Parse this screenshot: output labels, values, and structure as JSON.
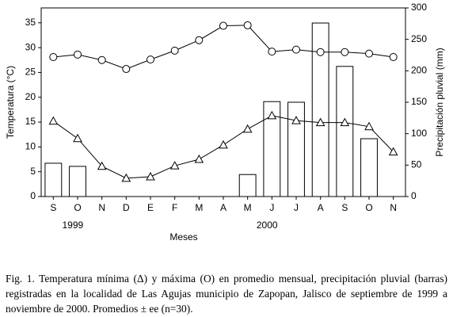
{
  "chart_data": {
    "type": "combo",
    "y_label": "Temperatura (°C)",
    "y2_label": "Precipitación pluvial (mm)",
    "x_label": "Meses",
    "categories": [
      "S",
      "O",
      "N",
      "D",
      "E",
      "F",
      "M",
      "A",
      "M",
      "J",
      "J",
      "A",
      "S",
      "O",
      "N"
    ],
    "years": [
      "1999",
      "2000"
    ],
    "series": [
      {
        "type": "bar",
        "axis": "y2",
        "color": "#ffffff",
        "values": [
          53,
          48,
          0,
          0,
          0,
          0,
          0,
          0,
          35,
          151,
          150,
          276,
          207,
          92,
          0
        ]
      },
      {
        "type": "line",
        "marker": "circle",
        "color": "#000000",
        "values": [
          28.1,
          28.6,
          27.5,
          25.7,
          27.6,
          29.4,
          31.5,
          34.4,
          34.5,
          29.2,
          29.6,
          29.1,
          29.1,
          28.8,
          28.1
        ]
      },
      {
        "type": "line",
        "marker": "triangle",
        "color": "#000000",
        "values": [
          15.2,
          11.7,
          6.1,
          3.7,
          4.0,
          6.2,
          7.5,
          10.4,
          13.6,
          16.3,
          15.3,
          14.9,
          14.9,
          14.1,
          9.0
        ]
      }
    ],
    "ylim": [
      0,
      38
    ],
    "yticks": [
      0,
      5,
      10,
      15,
      20,
      25,
      30,
      35
    ],
    "y2lim": [
      0,
      300
    ],
    "y2ticks": [
      0,
      50,
      100,
      150,
      200,
      250,
      300
    ],
    "grid": false
  },
  "caption": "Fig. 1. Temperatura mínima (Δ) y máxima (O) en promedio mensual, precipitación pluvial (barras) registradas en la localidad de Las Agujas municipio de Zapopan, Jalisco de septiembre de 1999 a noviembre de 2000. Promedios ± ee (n=30)."
}
